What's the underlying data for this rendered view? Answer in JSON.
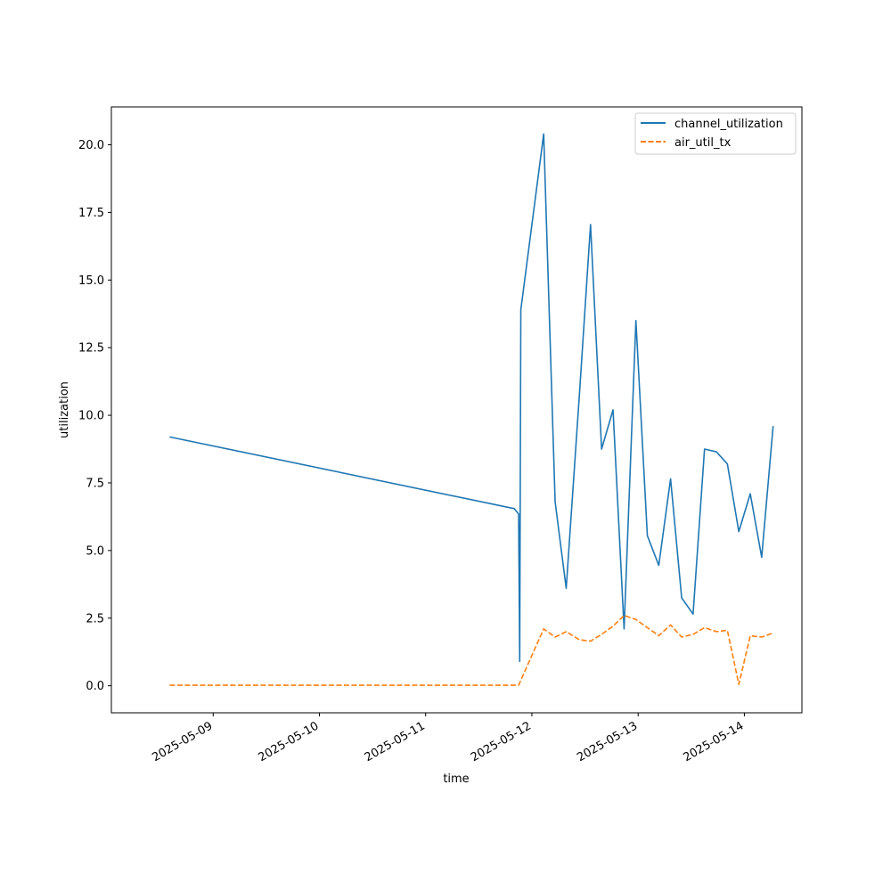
{
  "chart_data": {
    "type": "line",
    "title": "",
    "xlabel": "time",
    "ylabel": "utilization",
    "x_tick_labels": [
      "2025-05-09",
      "2025-05-10",
      "2025-05-11",
      "2025-05-12",
      "2025-05-13",
      "2025-05-14"
    ],
    "y_ticks": [
      0.0,
      2.5,
      5.0,
      7.5,
      10.0,
      12.5,
      15.0,
      17.5,
      20.0
    ],
    "y_tick_labels": [
      "0.0",
      "2.5",
      "5.0",
      "7.5",
      "10.0",
      "12.5",
      "15.0",
      "17.5",
      "20.0"
    ],
    "xlim": [
      "2025-05-08 01:00",
      "2025-05-14 13:00"
    ],
    "ylim": [
      -1.0,
      21.4
    ],
    "grid": false,
    "legend_position": "top-right",
    "series": [
      {
        "name": "channel_utilization",
        "color": "#1f77b4",
        "style": "solid",
        "points": [
          [
            "2025-05-08 14:10",
            9.2
          ],
          [
            "2025-05-11 20:00",
            6.55
          ],
          [
            "2025-05-11 21:00",
            6.35
          ],
          [
            "2025-05-11 21:15",
            0.9
          ],
          [
            "2025-05-11 21:30",
            13.9
          ],
          [
            "2025-05-12 02:40",
            20.4
          ],
          [
            "2025-05-12 05:15",
            6.8
          ],
          [
            "2025-05-12 07:45",
            3.6
          ],
          [
            "2025-05-12 10:45",
            10.8
          ],
          [
            "2025-05-12 13:15",
            17.05
          ],
          [
            "2025-05-12 15:45",
            8.75
          ],
          [
            "2025-05-12 18:20",
            10.2
          ],
          [
            "2025-05-12 20:50",
            2.1
          ],
          [
            "2025-05-12 23:30",
            13.5
          ],
          [
            "2025-05-13 02:05",
            5.55
          ],
          [
            "2025-05-13 04:40",
            4.45
          ],
          [
            "2025-05-13 07:20",
            7.65
          ],
          [
            "2025-05-13 09:50",
            3.25
          ],
          [
            "2025-05-13 12:25",
            2.65
          ],
          [
            "2025-05-13 15:00",
            8.75
          ],
          [
            "2025-05-13 17:40",
            8.65
          ],
          [
            "2025-05-13 20:10",
            8.2
          ],
          [
            "2025-05-13 22:45",
            5.7
          ],
          [
            "2025-05-14 01:20",
            7.1
          ],
          [
            "2025-05-14 03:55",
            4.75
          ],
          [
            "2025-05-14 06:30",
            9.6
          ]
        ]
      },
      {
        "name": "air_util_tx",
        "color": "#ff7f0e",
        "style": "dashed",
        "points": [
          [
            "2025-05-08 14:10",
            0.02
          ],
          [
            "2025-05-11 21:00",
            0.02
          ],
          [
            "2025-05-12 02:40",
            2.1
          ],
          [
            "2025-05-12 05:15",
            1.8
          ],
          [
            "2025-05-12 07:45",
            2.0
          ],
          [
            "2025-05-12 10:45",
            1.7
          ],
          [
            "2025-05-12 13:15",
            1.65
          ],
          [
            "2025-05-12 15:45",
            1.9
          ],
          [
            "2025-05-12 18:20",
            2.2
          ],
          [
            "2025-05-12 20:50",
            2.6
          ],
          [
            "2025-05-12 23:30",
            2.45
          ],
          [
            "2025-05-13 02:05",
            2.15
          ],
          [
            "2025-05-13 04:40",
            1.85
          ],
          [
            "2025-05-13 07:20",
            2.25
          ],
          [
            "2025-05-13 09:50",
            1.8
          ],
          [
            "2025-05-13 12:25",
            1.9
          ],
          [
            "2025-05-13 15:00",
            2.15
          ],
          [
            "2025-05-13 17:40",
            2.0
          ],
          [
            "2025-05-13 20:10",
            2.05
          ],
          [
            "2025-05-13 22:45",
            0.05
          ],
          [
            "2025-05-14 01:20",
            1.85
          ],
          [
            "2025-05-14 03:55",
            1.8
          ],
          [
            "2025-05-14 06:30",
            1.95
          ]
        ]
      }
    ]
  }
}
